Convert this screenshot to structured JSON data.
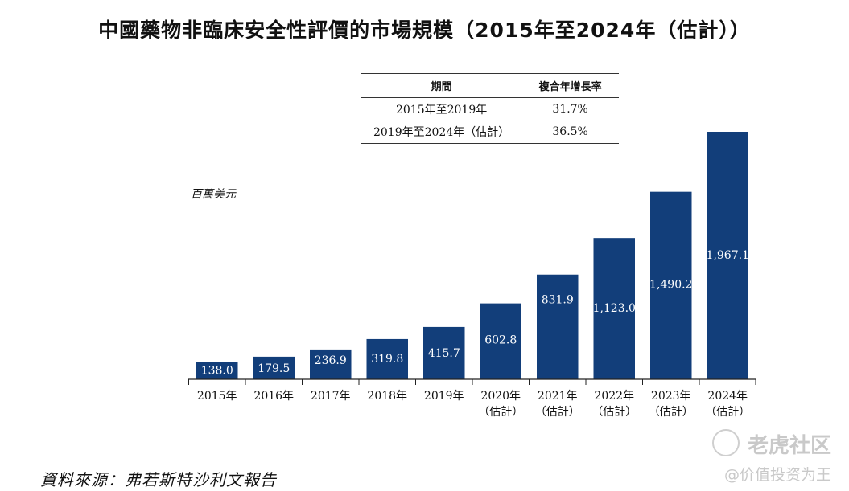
{
  "title": "中國藥物非臨床安全性評價的市場規模（2015年至2024年（估計））",
  "cagr_table": {
    "headers": [
      "期間",
      "複合年增長率"
    ],
    "rows": [
      {
        "period": "2015年至2019年",
        "cagr": "31.7%"
      },
      {
        "period": "2019年至2024年（估計）",
        "cagr": "36.5%"
      }
    ]
  },
  "unit_label": "百萬美元",
  "source": "資料來源：弗若斯特沙利文報告",
  "watermark": {
    "brand": "老虎社区",
    "handle": "@价值投资为王"
  },
  "colors": {
    "bar": "#123e7a",
    "bar_label": "#ffffff",
    "axis": "#222222"
  },
  "chart_data": {
    "type": "bar",
    "categories": [
      "2015年",
      "2016年",
      "2017年",
      "2018年",
      "2019年",
      "2020年",
      "2021年",
      "2022年",
      "2023年",
      "2024年"
    ],
    "category_notes": [
      "",
      "",
      "",
      "",
      "",
      "（估計）",
      "（估計）",
      "（估計）",
      "（估計）",
      "（估計）"
    ],
    "values": [
      138.0,
      179.5,
      236.9,
      319.8,
      415.7,
      602.8,
      831.9,
      1123.0,
      1490.2,
      1967.1
    ],
    "value_labels": [
      "138.0",
      "179.5",
      "236.9",
      "319.8",
      "415.7",
      "602.8",
      "831.9",
      "1,123.0",
      "1,490.2",
      "1,967.1"
    ],
    "ylabel": "百萬美元",
    "ylim": [
      0,
      1967.1
    ],
    "grid": false
  }
}
